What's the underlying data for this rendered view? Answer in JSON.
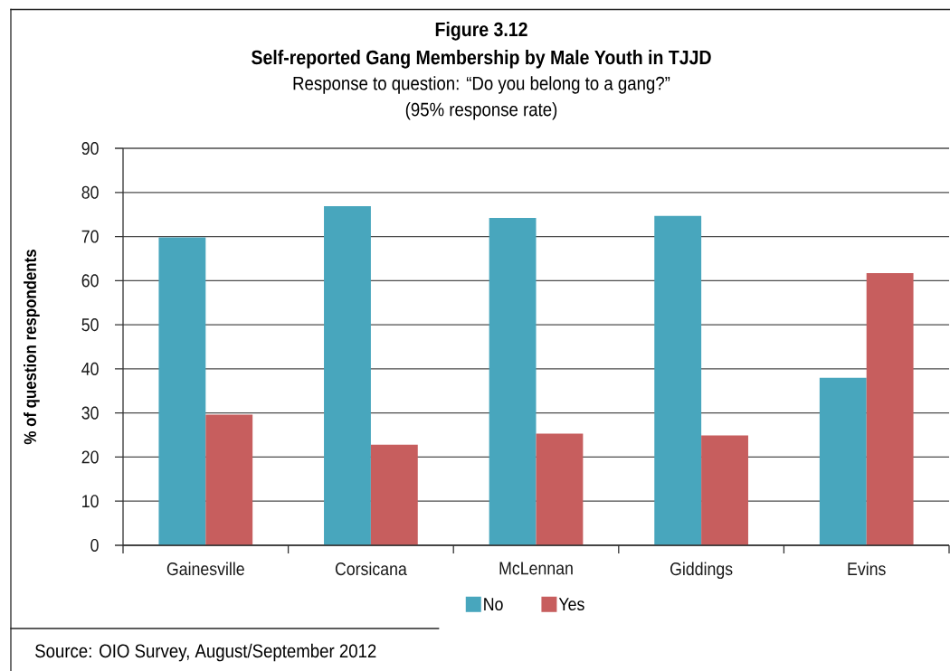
{
  "chart_data": {
    "type": "bar",
    "title": "Self-reported Gang Membership by Male Youth in TJJD",
    "subtitle": "Response to question: “Do you belong to a gang?” (95% response rate)",
    "ylabel": "% of question respondents",
    "categories": [
      "Gainesville",
      "Corsicana",
      "McLennan",
      "Giddings",
      "Evins"
    ],
    "series": [
      {
        "name": "No",
        "color": "#48a6bd",
        "values": [
          69.8,
          76.9,
          74.2,
          74.7,
          38.0
        ]
      },
      {
        "name": "Yes",
        "color": "#c75e5e",
        "values": [
          29.6,
          22.8,
          25.3,
          24.9,
          61.7
        ]
      }
    ],
    "ylim": [
      0,
      90
    ],
    "yticks": [
      0,
      10,
      20,
      30,
      40,
      50,
      60,
      70,
      80,
      90
    ],
    "grid": "y",
    "legend": "bottom",
    "annotations": [
      "Figure 3.12",
      "Source: OIO Survey, August/September 2012"
    ]
  }
}
